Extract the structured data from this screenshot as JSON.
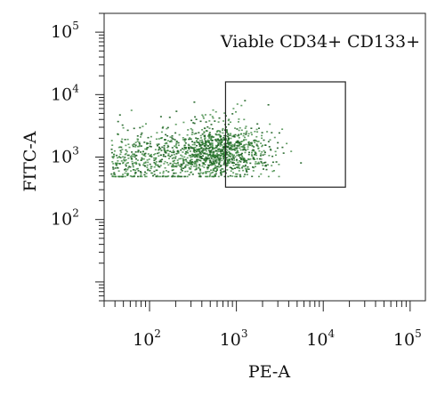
{
  "chart_data": {
    "type": "scatter",
    "title": "",
    "xlabel": "PE-A",
    "ylabel": "FITC-A",
    "annotation": "Viable CD34+ CD133+",
    "xscale": "log",
    "yscale": "log",
    "xlim": [
      30,
      150000
    ],
    "ylim": [
      5,
      200000
    ],
    "x_ticks": [
      {
        "base": "10",
        "exp": "2",
        "value": 100
      },
      {
        "base": "10",
        "exp": "3",
        "value": 1000
      },
      {
        "base": "10",
        "exp": "4",
        "value": 10000
      },
      {
        "base": "10",
        "exp": "5",
        "value": 100000
      }
    ],
    "y_ticks": [
      {
        "base": "10",
        "exp": "2",
        "value": 100
      },
      {
        "base": "10",
        "exp": "3",
        "value": 1000
      },
      {
        "base": "10",
        "exp": "4",
        "value": 10000
      },
      {
        "base": "10",
        "exp": "5",
        "value": 100000
      }
    ],
    "gate": {
      "x": [
        750,
        18000
      ],
      "y": [
        330,
        16000
      ]
    },
    "point_color": "#2e7d32",
    "grid": false,
    "legend": "none"
  }
}
